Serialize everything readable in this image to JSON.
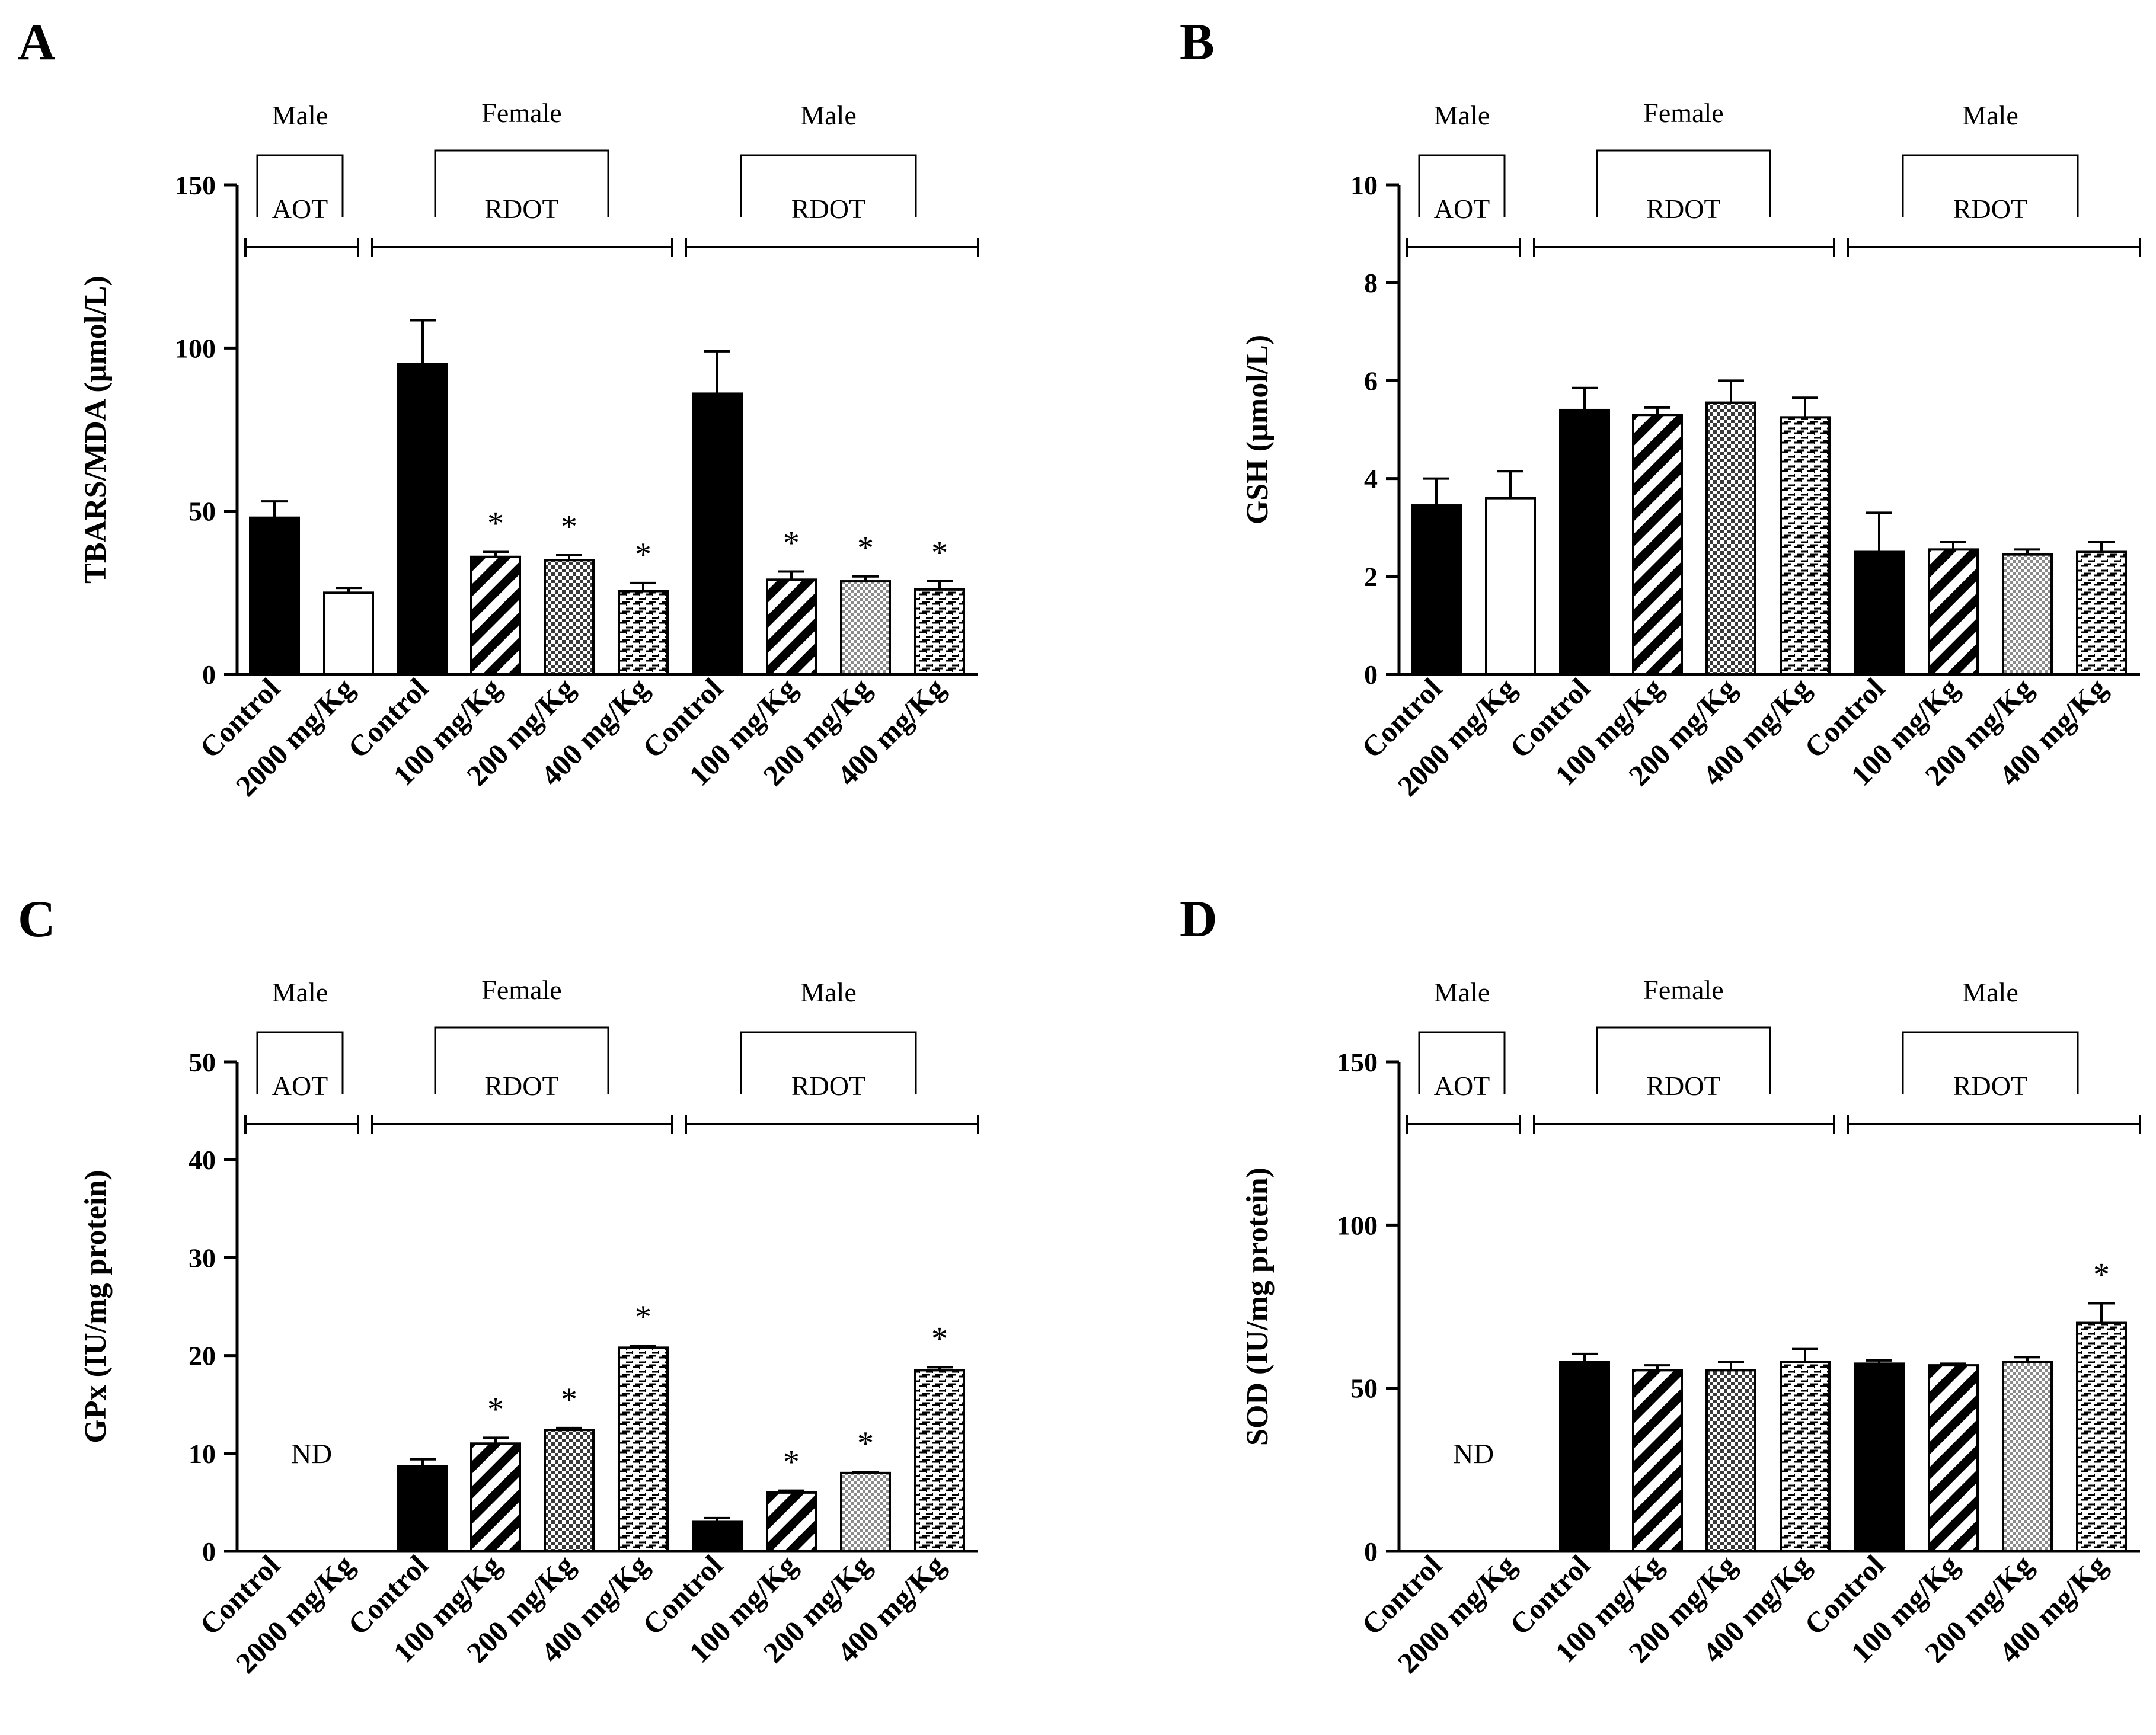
{
  "charts": [
    {
      "panel": "A",
      "type": "bar",
      "ylabel": "TBARS/MDA (µmol/L)",
      "ylim": [
        0,
        150
      ],
      "yticks": [
        0,
        50,
        100,
        150
      ],
      "group_labels": [
        {
          "sex": "Male",
          "test": "AOT"
        },
        {
          "sex": "Female",
          "test": "RDOT"
        },
        {
          "sex": "Male",
          "test": "RDOT"
        }
      ],
      "categories": [
        "Control",
        "2000 mg/Kg",
        "Control",
        "100 mg/Kg",
        "200 mg/Kg",
        "400 mg/Kg",
        "Control",
        "100 mg/Kg",
        "200 mg/Kg",
        "400 mg/Kg"
      ],
      "values": [
        48,
        25,
        95,
        36,
        35,
        25.5,
        86,
        29,
        28.5,
        26
      ],
      "errors": [
        5,
        1.5,
        13.5,
        1.5,
        1.5,
        2.5,
        13,
        2.5,
        1.5,
        2.5
      ],
      "patterns": [
        "solid",
        "empty",
        "solid",
        "diag",
        "check",
        "brick",
        "solid",
        "diag",
        "dots",
        "brick"
      ],
      "significant": [
        false,
        false,
        false,
        true,
        true,
        true,
        false,
        true,
        true,
        true
      ],
      "nd_label": ""
    },
    {
      "panel": "B",
      "type": "bar",
      "ylabel": "GSH (µmol/L)",
      "ylim": [
        0,
        10
      ],
      "yticks": [
        0,
        2,
        4,
        6,
        8,
        10
      ],
      "group_labels": [
        {
          "sex": "Male",
          "test": "AOT"
        },
        {
          "sex": "Female",
          "test": "RDOT"
        },
        {
          "sex": "Male",
          "test": "RDOT"
        }
      ],
      "categories": [
        "Control",
        "2000 mg/Kg",
        "Control",
        "100 mg/Kg",
        "200 mg/Kg",
        "400 mg/Kg",
        "Control",
        "100 mg/Kg",
        "200 mg/Kg",
        "400 mg/Kg"
      ],
      "values": [
        3.45,
        3.6,
        5.4,
        5.3,
        5.55,
        5.25,
        2.5,
        2.55,
        2.45,
        2.5
      ],
      "errors": [
        0.55,
        0.55,
        0.45,
        0.15,
        0.45,
        0.4,
        0.8,
        0.15,
        0.1,
        0.2
      ],
      "patterns": [
        "solid",
        "empty",
        "solid",
        "diag",
        "check",
        "brick",
        "solid",
        "diag",
        "dots",
        "brick"
      ],
      "significant": [
        false,
        false,
        false,
        false,
        false,
        false,
        false,
        false,
        false,
        false
      ],
      "nd_label": ""
    },
    {
      "panel": "C",
      "type": "bar",
      "ylabel": "GPx (IU/mg protein)",
      "ylim": [
        0,
        50
      ],
      "yticks": [
        0,
        10,
        20,
        30,
        40,
        50
      ],
      "group_labels": [
        {
          "sex": "Male",
          "test": "AOT"
        },
        {
          "sex": "Female",
          "test": "RDOT"
        },
        {
          "sex": "Male",
          "test": "RDOT"
        }
      ],
      "categories": [
        "Control",
        "2000 mg/Kg",
        "Control",
        "100 mg/Kg",
        "200 mg/Kg",
        "400 mg/Kg",
        "Control",
        "100 mg/Kg",
        "200 mg/Kg",
        "400 mg/Kg"
      ],
      "values": [
        null,
        null,
        8.7,
        11,
        12.4,
        20.8,
        3,
        6,
        8,
        18.5
      ],
      "errors": [
        0,
        0,
        0.7,
        0.6,
        0.2,
        0.2,
        0.4,
        0.2,
        0.1,
        0.3
      ],
      "patterns": [
        "solid",
        "empty",
        "solid",
        "diag",
        "check",
        "brick",
        "solid",
        "diag",
        "dots",
        "brick"
      ],
      "significant": [
        false,
        false,
        false,
        true,
        true,
        true,
        false,
        true,
        true,
        true
      ],
      "nd_label": "ND"
    },
    {
      "panel": "D",
      "type": "bar",
      "ylabel": "SOD (IU/mg protein)",
      "ylim": [
        0,
        150
      ],
      "yticks": [
        0,
        50,
        100,
        150
      ],
      "group_labels": [
        {
          "sex": "Male",
          "test": "AOT"
        },
        {
          "sex": "Female",
          "test": "RDOT"
        },
        {
          "sex": "Male",
          "test": "RDOT"
        }
      ],
      "categories": [
        "Control",
        "2000 mg/Kg",
        "Control",
        "100 mg/Kg",
        "200 mg/Kg",
        "400 mg/Kg",
        "Control",
        "100 mg/Kg",
        "200 mg/Kg",
        "400 mg/Kg"
      ],
      "values": [
        null,
        null,
        58,
        55.5,
        55.5,
        58,
        57.5,
        57,
        58,
        70
      ],
      "errors": [
        0,
        0,
        2.5,
        1.5,
        2.5,
        4,
        1,
        0.5,
        1.5,
        6
      ],
      "patterns": [
        "solid",
        "empty",
        "solid",
        "diag",
        "check",
        "brick",
        "solid",
        "diag",
        "dots",
        "brick"
      ],
      "significant": [
        false,
        false,
        false,
        false,
        false,
        false,
        false,
        false,
        false,
        true
      ],
      "nd_label": "ND"
    }
  ],
  "chart_data": [
    {
      "type": "bar",
      "title": "A",
      "xlabel": "",
      "ylabel": "TBARS/MDA (µmol/L)",
      "ylim": [
        0,
        150
      ],
      "categories": [
        "Control",
        "2000 mg/Kg",
        "Control",
        "100 mg/Kg",
        "200 mg/Kg",
        "400 mg/Kg",
        "Control",
        "100 mg/Kg",
        "200 mg/Kg",
        "400 mg/Kg"
      ],
      "groups": [
        "Male AOT",
        "Female RDOT",
        "Male RDOT"
      ],
      "values": [
        48,
        25,
        95,
        36,
        35,
        25.5,
        86,
        29,
        28.5,
        26
      ],
      "errors": [
        5,
        1.5,
        13.5,
        1.5,
        1.5,
        2.5,
        13,
        2.5,
        1.5,
        2.5
      ]
    },
    {
      "type": "bar",
      "title": "B",
      "xlabel": "",
      "ylabel": "GSH (µmol/L)",
      "ylim": [
        0,
        10
      ],
      "categories": [
        "Control",
        "2000 mg/Kg",
        "Control",
        "100 mg/Kg",
        "200 mg/Kg",
        "400 mg/Kg",
        "Control",
        "100 mg/Kg",
        "200 mg/Kg",
        "400 mg/Kg"
      ],
      "groups": [
        "Male AOT",
        "Female RDOT",
        "Male RDOT"
      ],
      "values": [
        3.45,
        3.6,
        5.4,
        5.3,
        5.55,
        5.25,
        2.5,
        2.55,
        2.45,
        2.5
      ],
      "errors": [
        0.55,
        0.55,
        0.45,
        0.15,
        0.45,
        0.4,
        0.8,
        0.15,
        0.1,
        0.2
      ]
    },
    {
      "type": "bar",
      "title": "C",
      "xlabel": "",
      "ylabel": "GPx (IU/mg protein)",
      "ylim": [
        0,
        50
      ],
      "categories": [
        "Control",
        "2000 mg/Kg",
        "Control",
        "100 mg/Kg",
        "200 mg/Kg",
        "400 mg/Kg",
        "Control",
        "100 mg/Kg",
        "200 mg/Kg",
        "400 mg/Kg"
      ],
      "groups": [
        "Male AOT",
        "Female RDOT",
        "Male RDOT"
      ],
      "values": [
        null,
        null,
        8.7,
        11,
        12.4,
        20.8,
        3,
        6,
        8,
        18.5
      ],
      "errors": [
        0,
        0,
        0.7,
        0.6,
        0.2,
        0.2,
        0.4,
        0.2,
        0.1,
        0.3
      ],
      "annotations": [
        "ND"
      ]
    },
    {
      "type": "bar",
      "title": "D",
      "xlabel": "",
      "ylabel": "SOD (IU/mg protein)",
      "ylim": [
        0,
        150
      ],
      "categories": [
        "Control",
        "2000 mg/Kg",
        "Control",
        "100 mg/Kg",
        "200 mg/Kg",
        "400 mg/Kg",
        "Control",
        "100 mg/Kg",
        "200 mg/Kg",
        "400 mg/Kg"
      ],
      "groups": [
        "Male AOT",
        "Female RDOT",
        "Male RDOT"
      ],
      "values": [
        null,
        null,
        58,
        55.5,
        55.5,
        58,
        57.5,
        57,
        58,
        70
      ],
      "errors": [
        0,
        0,
        2.5,
        1.5,
        2.5,
        4,
        1,
        0.5,
        1.5,
        6
      ],
      "annotations": [
        "ND"
      ]
    }
  ],
  "significance_marker": "*"
}
